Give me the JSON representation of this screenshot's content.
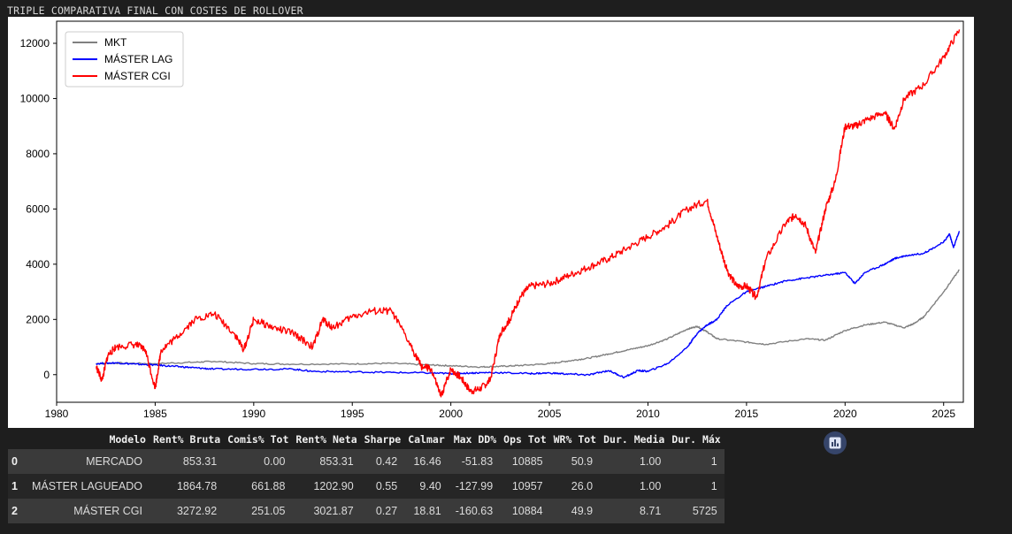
{
  "output_title": "TRIPLE COMPARATIVA FINAL CON COSTES DE ROLLOVER",
  "icons": {
    "chart_button": "bar-chart-icon"
  },
  "chart_data": {
    "type": "line",
    "xlim": [
      1980,
      2026
    ],
    "ylim": [
      -1000,
      12800
    ],
    "x_ticks": [
      1980,
      1985,
      1990,
      1995,
      2000,
      2005,
      2010,
      2015,
      2020,
      2025
    ],
    "y_ticks": [
      0,
      2000,
      4000,
      6000,
      8000,
      10000,
      12000
    ],
    "grid": false,
    "legend_position": "top-left",
    "series": [
      {
        "name": "MKT",
        "color": "#808080",
        "points": [
          [
            1982.0,
            400
          ],
          [
            1983.0,
            420
          ],
          [
            1985.0,
            400
          ],
          [
            1987.0,
            450
          ],
          [
            1988.0,
            480
          ],
          [
            1990.0,
            400
          ],
          [
            1992.0,
            380
          ],
          [
            1995.0,
            390
          ],
          [
            1997.0,
            410
          ],
          [
            1999.0,
            350
          ],
          [
            2000.0,
            320
          ],
          [
            2001.5,
            280
          ],
          [
            2002.5,
            300
          ],
          [
            2003.5,
            330
          ],
          [
            2005.0,
            400
          ],
          [
            2006.0,
            500
          ],
          [
            2007.0,
            600
          ],
          [
            2008.0,
            750
          ],
          [
            2009.0,
            900
          ],
          [
            2010.0,
            1050
          ],
          [
            2011.0,
            1300
          ],
          [
            2012.0,
            1650
          ],
          [
            2012.5,
            1750
          ],
          [
            2013.0,
            1550
          ],
          [
            2013.5,
            1300
          ],
          [
            2015.0,
            1180
          ],
          [
            2016.0,
            1100
          ],
          [
            2018.0,
            1300
          ],
          [
            2019.0,
            1250
          ],
          [
            2020.0,
            1600
          ],
          [
            2021.0,
            1800
          ],
          [
            2022.0,
            1900
          ],
          [
            2023.0,
            1700
          ],
          [
            2023.5,
            1850
          ],
          [
            2024.0,
            2100
          ],
          [
            2025.0,
            3000
          ],
          [
            2025.8,
            3800
          ]
        ]
      },
      {
        "name": "MÁSTER LAG",
        "color": "#0000ff",
        "points": [
          [
            1982.0,
            400
          ],
          [
            1983.0,
            430
          ],
          [
            1984.0,
            380
          ],
          [
            1985.0,
            350
          ],
          [
            1986.0,
            300
          ],
          [
            1987.0,
            250
          ],
          [
            1988.0,
            200
          ],
          [
            1990.0,
            200
          ],
          [
            1992.0,
            200
          ],
          [
            1993.0,
            120
          ],
          [
            1995.0,
            100
          ],
          [
            1997.0,
            80
          ],
          [
            1999.0,
            60
          ],
          [
            2000.0,
            40
          ],
          [
            2001.0,
            60
          ],
          [
            2002.0,
            80
          ],
          [
            2004.0,
            40
          ],
          [
            2005.0,
            60
          ],
          [
            2006.0,
            20
          ],
          [
            2007.0,
            -10
          ],
          [
            2008.0,
            150
          ],
          [
            2008.8,
            -100
          ],
          [
            2009.5,
            150
          ],
          [
            2010.0,
            120
          ],
          [
            2011.0,
            400
          ],
          [
            2012.0,
            1000
          ],
          [
            2012.5,
            1500
          ],
          [
            2013.0,
            1800
          ],
          [
            2013.5,
            2000
          ],
          [
            2014.0,
            2500
          ],
          [
            2015.0,
            3000
          ],
          [
            2016.0,
            3200
          ],
          [
            2017.0,
            3400
          ],
          [
            2018.0,
            3500
          ],
          [
            2019.0,
            3600
          ],
          [
            2020.0,
            3700
          ],
          [
            2020.5,
            3300
          ],
          [
            2021.0,
            3700
          ],
          [
            2022.0,
            4000
          ],
          [
            2022.5,
            4200
          ],
          [
            2023.0,
            4300
          ],
          [
            2024.0,
            4400
          ],
          [
            2025.0,
            4800
          ],
          [
            2025.3,
            5100
          ],
          [
            2025.5,
            4600
          ],
          [
            2025.8,
            5200
          ]
        ]
      },
      {
        "name": "MÁSTER CGI",
        "color": "#ff0000",
        "points": [
          [
            1982.0,
            300
          ],
          [
            1982.3,
            -200
          ],
          [
            1982.6,
            700
          ],
          [
            1983.0,
            1000
          ],
          [
            1984.0,
            1100
          ],
          [
            1984.5,
            900
          ],
          [
            1985.0,
            -500
          ],
          [
            1985.3,
            900
          ],
          [
            1986.0,
            1300
          ],
          [
            1987.0,
            2000
          ],
          [
            1988.0,
            2200
          ],
          [
            1989.0,
            1500
          ],
          [
            1989.5,
            900
          ],
          [
            1990.0,
            2000
          ],
          [
            1991.0,
            1700
          ],
          [
            1992.0,
            1500
          ],
          [
            1993.0,
            1000
          ],
          [
            1993.5,
            2000
          ],
          [
            1994.0,
            1700
          ],
          [
            1995.0,
            2100
          ],
          [
            1996.0,
            2300
          ],
          [
            1997.0,
            2300
          ],
          [
            1998.0,
            1000
          ],
          [
            1998.5,
            300
          ],
          [
            1999.0,
            200
          ],
          [
            1999.5,
            -800
          ],
          [
            2000.0,
            200
          ],
          [
            2000.5,
            -100
          ],
          [
            2001.0,
            -600
          ],
          [
            2001.5,
            -500
          ],
          [
            2002.0,
            -200
          ],
          [
            2002.5,
            1500
          ],
          [
            2003.0,
            2000
          ],
          [
            2003.5,
            2800
          ],
          [
            2004.0,
            3200
          ],
          [
            2005.0,
            3300
          ],
          [
            2006.0,
            3600
          ],
          [
            2007.0,
            3900
          ],
          [
            2008.0,
            4200
          ],
          [
            2009.0,
            4600
          ],
          [
            2010.0,
            5000
          ],
          [
            2011.0,
            5400
          ],
          [
            2012.0,
            6000
          ],
          [
            2013.0,
            6300
          ],
          [
            2013.5,
            5000
          ],
          [
            2014.0,
            3800
          ],
          [
            2014.5,
            3200
          ],
          [
            2015.0,
            3200
          ],
          [
            2015.5,
            2800
          ],
          [
            2016.0,
            4200
          ],
          [
            2017.0,
            5500
          ],
          [
            2017.5,
            5800
          ],
          [
            2018.0,
            5400
          ],
          [
            2018.5,
            4400
          ],
          [
            2019.0,
            6000
          ],
          [
            2019.5,
            7000
          ],
          [
            2020.0,
            9000
          ],
          [
            2020.5,
            9000
          ],
          [
            2021.0,
            9200
          ],
          [
            2022.0,
            9500
          ],
          [
            2022.5,
            8900
          ],
          [
            2023.0,
            10000
          ],
          [
            2024.0,
            10500
          ],
          [
            2025.0,
            11500
          ],
          [
            2025.8,
            12500
          ]
        ]
      }
    ]
  },
  "table": {
    "columns": [
      "Modelo",
      "Rent% Bruta",
      "Comis% Tot",
      "Rent% Neta",
      "Sharpe",
      "Calmar",
      "Max DD%",
      "Ops Tot",
      "WR% Tot",
      "Dur. Media",
      "Dur. Máx"
    ],
    "rows": [
      {
        "index": "0",
        "cells": [
          "MERCADO",
          "853.31",
          "0.00",
          "853.31",
          "0.42",
          "16.46",
          "-51.83",
          "10885",
          "50.9",
          "1.00",
          "1"
        ]
      },
      {
        "index": "1",
        "cells": [
          "MÁSTER LAGUEADO",
          "1864.78",
          "661.88",
          "1202.90",
          "0.55",
          "9.40",
          "-127.99",
          "10957",
          "26.0",
          "1.00",
          "1"
        ]
      },
      {
        "index": "2",
        "cells": [
          "MÁSTER CGI",
          "3272.92",
          "251.05",
          "3021.87",
          "0.27",
          "18.81",
          "-160.63",
          "10884",
          "49.9",
          "8.71",
          "5725"
        ]
      }
    ]
  }
}
